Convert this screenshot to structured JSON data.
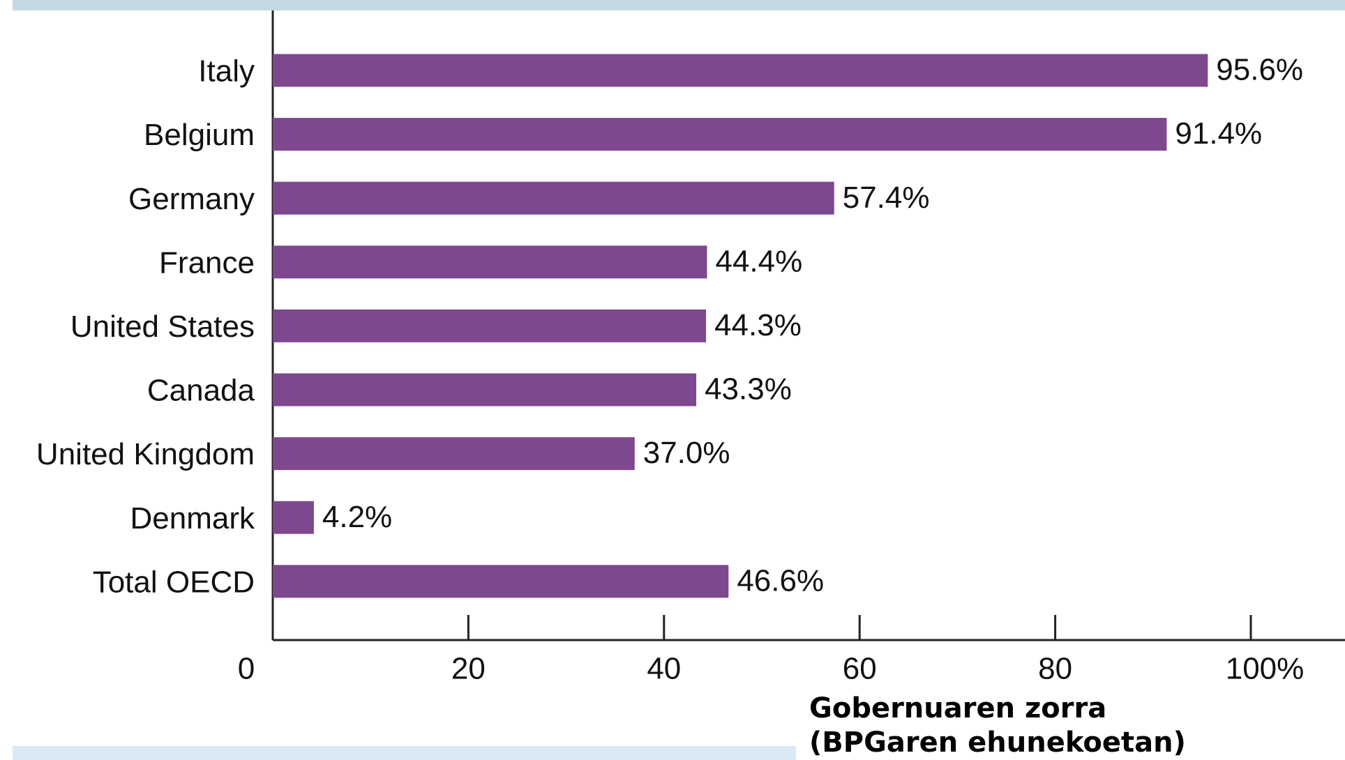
{
  "chart_data": {
    "type": "bar",
    "orientation": "horizontal",
    "categories": [
      "Italy",
      "Belgium",
      "Germany",
      "France",
      "United States",
      "Canada",
      "United Kingdom",
      "Denmark",
      "Total OECD"
    ],
    "values": [
      95.6,
      91.4,
      57.4,
      44.4,
      44.3,
      43.3,
      37.0,
      4.2,
      46.6
    ],
    "value_labels": [
      "95.6%",
      "91.4%",
      "57.4%",
      "44.4%",
      "44.3%",
      "43.3%",
      "37.0%",
      "4.2%",
      "46.6%"
    ],
    "color": "#7e478e",
    "xlim": [
      0,
      100
    ],
    "xticks": [
      0,
      20,
      40,
      60,
      80,
      {
        "value": 100,
        "label": "100%"
      }
    ],
    "xlabel": "Gobernuaren zorra (BPGaren ehunekoetan)"
  }
}
